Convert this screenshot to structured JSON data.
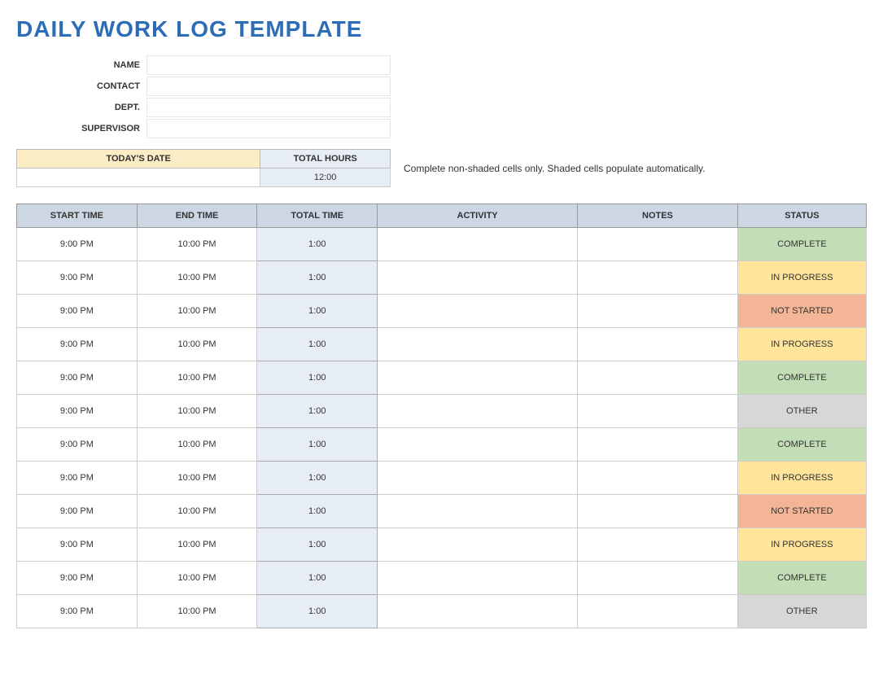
{
  "title": "DAILY WORK LOG TEMPLATE",
  "info_labels": {
    "name": "NAME",
    "contact": "CONTACT",
    "dept": "DEPT.",
    "supervisor": "SUPERVISOR"
  },
  "info_values": {
    "name": "",
    "contact": "",
    "dept": "",
    "supervisor": ""
  },
  "summary": {
    "date_header": "TODAY'S DATE",
    "hours_header": "TOTAL HOURS",
    "date_value": "",
    "hours_value": "12:00",
    "date_header_bg": "#fcecc5",
    "hours_header_bg": "#e7edf5",
    "hours_value_bg": "#e7edf5"
  },
  "note": "Complete non-shaded cells only. Shaded cells populate automatically.",
  "log_headers": {
    "start": "START TIME",
    "end": "END TIME",
    "total": "TOTAL TIME",
    "activity": "ACTIVITY",
    "notes": "NOTES",
    "status": "STATUS"
  },
  "header_bg": "#cdd7e4",
  "total_col_bg": "#e7edf5",
  "status_colors": {
    "COMPLETE": "#c3deb6",
    "IN PROGRESS": "#ffe49a",
    "NOT STARTED": "#f4b596",
    "OTHER": "#d7d7d7"
  },
  "rows": [
    {
      "start": "9:00 PM",
      "end": "10:00 PM",
      "total": "1:00",
      "activity": "",
      "notes": "",
      "status": "COMPLETE"
    },
    {
      "start": "9:00 PM",
      "end": "10:00 PM",
      "total": "1:00",
      "activity": "",
      "notes": "",
      "status": "IN PROGRESS"
    },
    {
      "start": "9:00 PM",
      "end": "10:00 PM",
      "total": "1:00",
      "activity": "",
      "notes": "",
      "status": "NOT STARTED"
    },
    {
      "start": "9:00 PM",
      "end": "10:00 PM",
      "total": "1:00",
      "activity": "",
      "notes": "",
      "status": "IN PROGRESS"
    },
    {
      "start": "9:00 PM",
      "end": "10:00 PM",
      "total": "1:00",
      "activity": "",
      "notes": "",
      "status": "COMPLETE"
    },
    {
      "start": "9:00 PM",
      "end": "10:00 PM",
      "total": "1:00",
      "activity": "",
      "notes": "",
      "status": "OTHER"
    },
    {
      "start": "9:00 PM",
      "end": "10:00 PM",
      "total": "1:00",
      "activity": "",
      "notes": "",
      "status": "COMPLETE"
    },
    {
      "start": "9:00 PM",
      "end": "10:00 PM",
      "total": "1:00",
      "activity": "",
      "notes": "",
      "status": "IN PROGRESS"
    },
    {
      "start": "9:00 PM",
      "end": "10:00 PM",
      "total": "1:00",
      "activity": "",
      "notes": "",
      "status": "NOT STARTED"
    },
    {
      "start": "9:00 PM",
      "end": "10:00 PM",
      "total": "1:00",
      "activity": "",
      "notes": "",
      "status": "IN PROGRESS"
    },
    {
      "start": "9:00 PM",
      "end": "10:00 PM",
      "total": "1:00",
      "activity": "",
      "notes": "",
      "status": "COMPLETE"
    },
    {
      "start": "9:00 PM",
      "end": "10:00 PM",
      "total": "1:00",
      "activity": "",
      "notes": "",
      "status": "OTHER"
    }
  ]
}
